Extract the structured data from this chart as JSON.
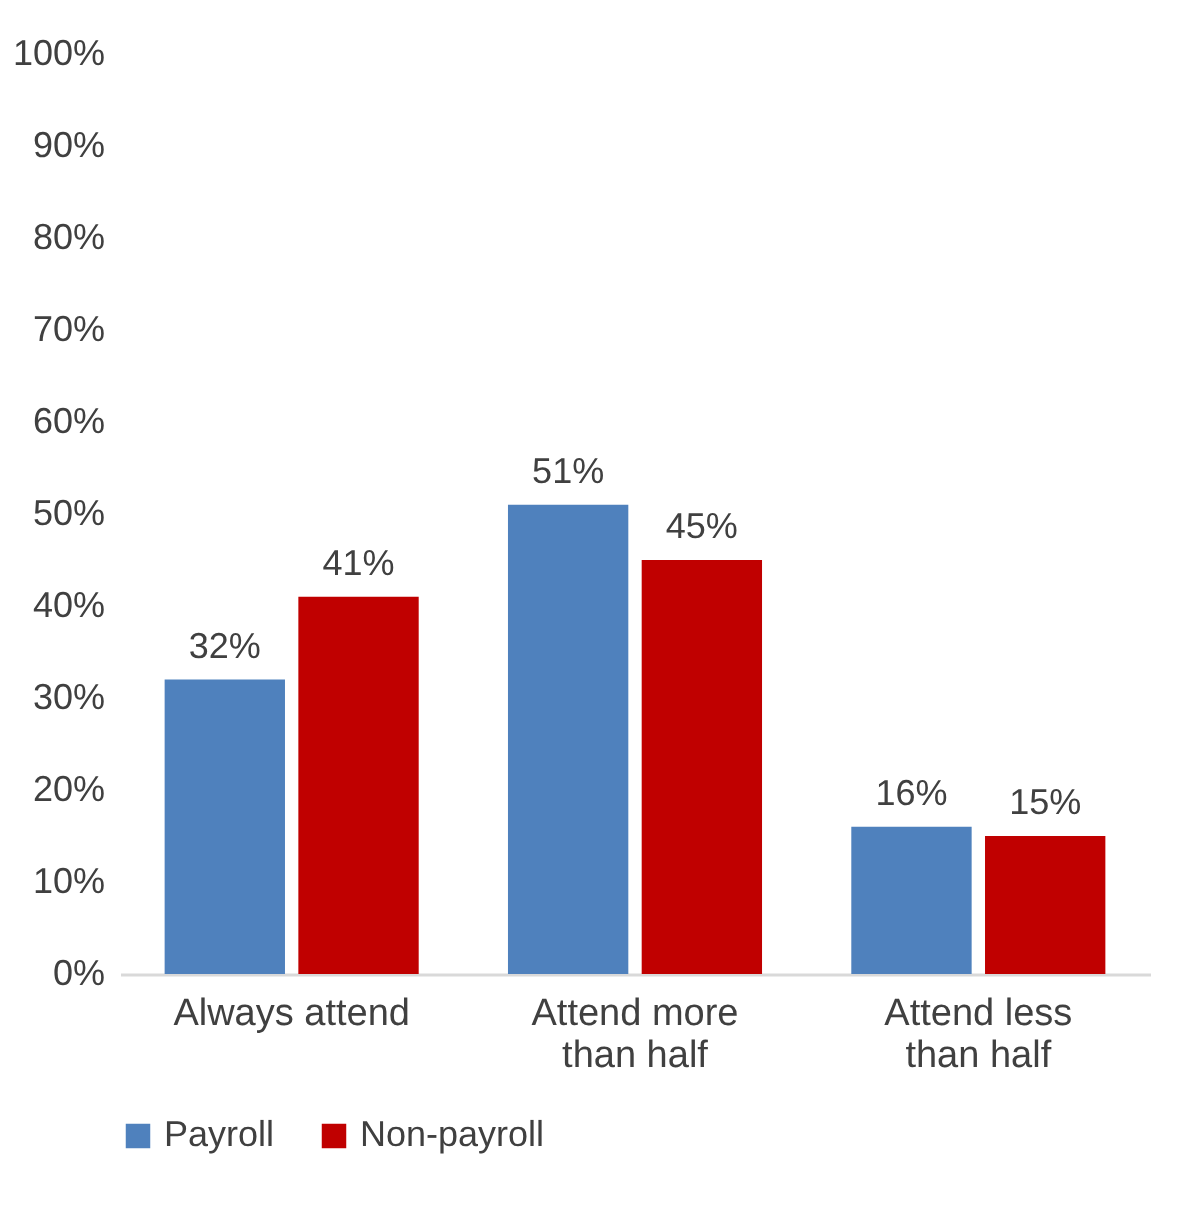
{
  "chart_data": {
    "type": "bar",
    "categories": [
      "Always attend",
      "Attend more than half",
      "Attend less than half"
    ],
    "series": [
      {
        "name": "Payroll",
        "color": "#4f81bd",
        "values": [
          32,
          51,
          16
        ],
        "value_labels": [
          "32%",
          "51%",
          "16%"
        ]
      },
      {
        "name": "Non-payroll",
        "color": "#c00000",
        "values": [
          41,
          45,
          15
        ],
        "value_labels": [
          "41%",
          "45%",
          "15%"
        ]
      }
    ],
    "ylim": [
      0,
      100
    ],
    "yticks": [
      {
        "value": 0,
        "label": "0%"
      },
      {
        "value": 10,
        "label": "10%"
      },
      {
        "value": 20,
        "label": "20%"
      },
      {
        "value": 30,
        "label": "30%"
      },
      {
        "value": 40,
        "label": "40%"
      },
      {
        "value": 50,
        "label": "50%"
      },
      {
        "value": 60,
        "label": "60%"
      },
      {
        "value": 70,
        "label": "70%"
      },
      {
        "value": 80,
        "label": "80%"
      },
      {
        "value": 90,
        "label": "90%"
      },
      {
        "value": 100,
        "label": "100%"
      }
    ],
    "grid": false,
    "legend": "bottom"
  }
}
